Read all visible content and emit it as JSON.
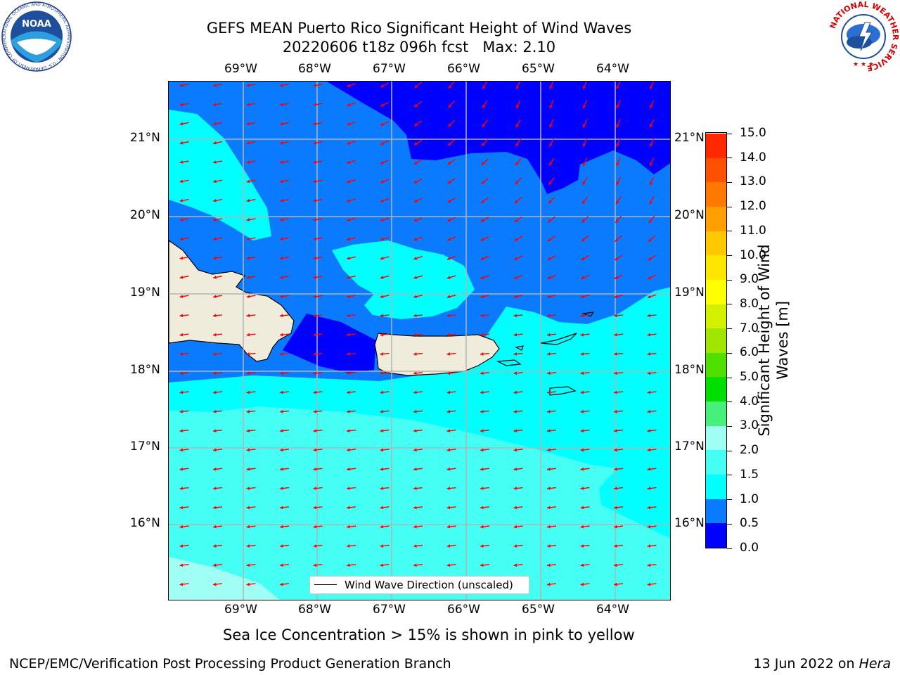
{
  "title": {
    "line1": "GEFS MEAN Puerto Rico Significant Height of Wind Waves",
    "line2": "20220606 t18z 096h fcst   Max: 2.10"
  },
  "map": {
    "lon_labels": [
      "69°W",
      "68°W",
      "67°W",
      "66°W",
      "65°W",
      "64°W"
    ],
    "lat_labels": [
      "21°N",
      "20°N",
      "19°N",
      "18°N",
      "17°N",
      "16°N"
    ],
    "arrow_color": "#ff0000",
    "legend_label": "Wind Wave Direction (unscaled)",
    "land_color": "#efecdc",
    "fill_colors": {
      "0.0-0.5": "#0000ff",
      "0.5-1.0": "#0a7bff",
      "1.0-1.5": "#00ffff",
      "1.5-2.0": "#46fff4",
      "2.0-3.0": "#a0fff4"
    }
  },
  "colorbar": {
    "label_line1": "Significant Height of Wind",
    "label_line2": "Waves [m]",
    "ticks": [
      "0.0",
      "0.5",
      "1.0",
      "1.5",
      "2.0",
      "3.0",
      "4.0",
      "5.0",
      "6.0",
      "7.0",
      "8.0",
      "9.0",
      "10.0",
      "11.0",
      "12.0",
      "13.0",
      "14.0",
      "15.0"
    ],
    "colors": [
      "#0000ff",
      "#0a7bff",
      "#00ffff",
      "#46fff4",
      "#a0fff4",
      "#46f07a",
      "#00e000",
      "#50e000",
      "#a0e600",
      "#d2f000",
      "#ffff00",
      "#ffe600",
      "#ffc800",
      "#ffa000",
      "#ff7800",
      "#ff5000",
      "#ff2800"
    ]
  },
  "sea_ice_note": "Sea Ice Concentration > 15% is shown in pink to yellow",
  "footer": {
    "left": "NCEP/EMC/Verification Post Processing Product Generation Branch",
    "right_prefix": "13 Jun 2022 on ",
    "right_host": "Hera"
  },
  "logos": {
    "noaa_text": "NOAA",
    "noaa_ring": "NATIONAL OCEANIC AND ATMOSPHERIC ADMINISTRATION · U.S. DEPARTMENT OF COMMERCE",
    "nws_ring": "NATIONAL WEATHER SERVICE"
  }
}
